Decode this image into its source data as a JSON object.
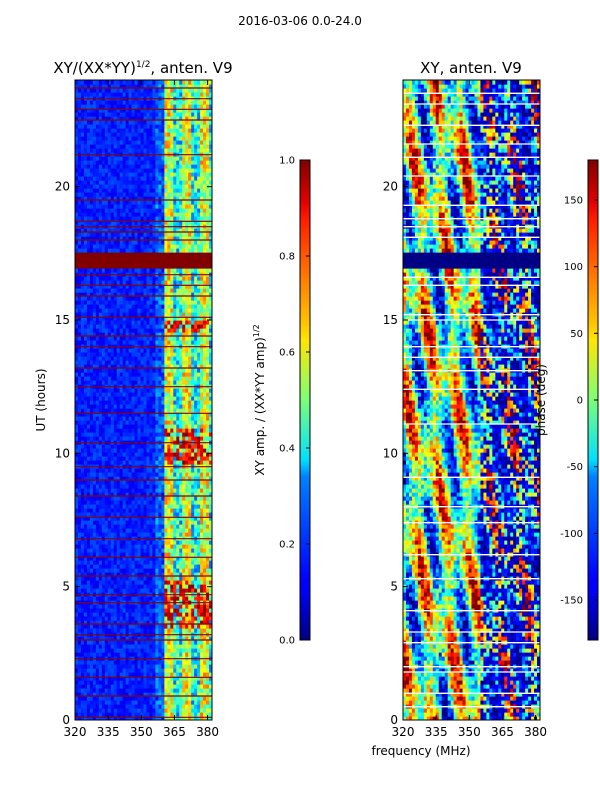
{
  "page": {
    "title": "2016-03-06 0.0-24.0"
  },
  "chart_data": [
    {
      "type": "heatmap",
      "title_main": "XY/(XX*YY)",
      "title_sup": "1/2",
      "title_tail": ", anten. V9",
      "xlabel": "",
      "ylabel": "UT (hours)",
      "x_range": [
        320,
        382
      ],
      "y_range": [
        0,
        24
      ],
      "x_ticks": [
        320,
        335,
        350,
        365,
        380
      ],
      "y_ticks": [
        0,
        5,
        10,
        15,
        20
      ],
      "colormap": "jet",
      "colorbar": {
        "label_main": "XY amp. / (XX*YY amp)",
        "label_sup": "1/2",
        "range": [
          0.0,
          1.0
        ],
        "ticks": [
          "0.0",
          "0.2",
          "0.4",
          "0.6",
          "0.8",
          "1.0"
        ]
      },
      "saturated_band_hours": [
        17.0,
        17.6
      ],
      "high_value_freq_range_mhz": [
        361,
        382
      ]
    },
    {
      "type": "heatmap",
      "title_main": "XY, anten. V9",
      "xlabel": "frequency (MHz)",
      "ylabel": "",
      "x_range": [
        320,
        382
      ],
      "y_range": [
        0,
        24
      ],
      "x_ticks": [
        320,
        335,
        350,
        365,
        380
      ],
      "y_ticks": [
        0,
        5,
        10,
        15,
        20
      ],
      "colormap": "jet",
      "colorbar": {
        "label": "phase (deg)",
        "range": [
          -180,
          180
        ],
        "ticks": [
          "-150",
          "-100",
          "-50",
          "0",
          "50",
          "100",
          "150"
        ]
      },
      "masked_band_hours": [
        17.0,
        17.6
      ]
    }
  ]
}
